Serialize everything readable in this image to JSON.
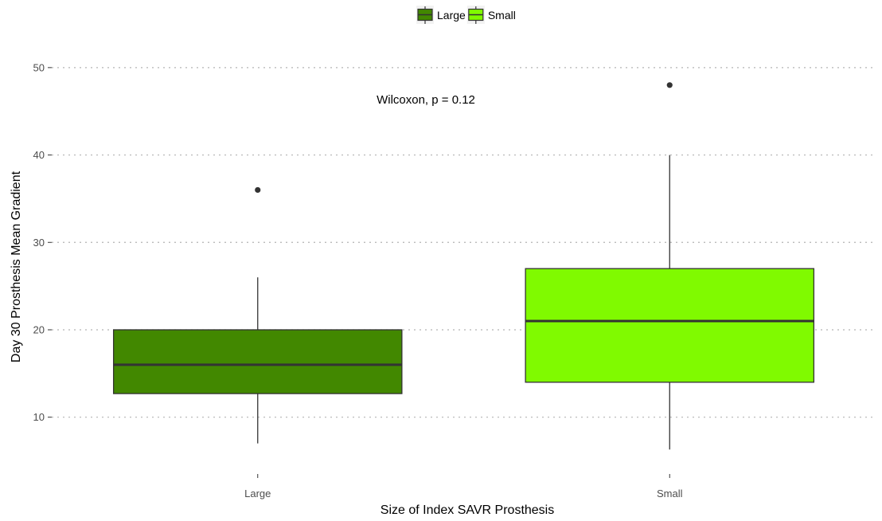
{
  "chart_data": {
    "type": "box",
    "xlabel": "Size of Index SAVR Prosthesis",
    "ylabel": "Day 30 Prosthesis Mean Gradient",
    "ylim": [
      3.5,
      55
    ],
    "yticks": [
      10,
      20,
      30,
      40,
      50
    ],
    "grid": "horizontal dotted",
    "legend_position": "top",
    "annotation": "Wilcoxon, p = 0.12",
    "categories": [
      "Large",
      "Small"
    ],
    "series": [
      {
        "name": "Large",
        "color": "#428800",
        "whisker_low": 7,
        "q1": 12.7,
        "median": 16,
        "q3": 20,
        "whisker_high": 26,
        "outliers": [
          36
        ]
      },
      {
        "name": "Small",
        "color": "#80fa00",
        "whisker_low": 6.3,
        "q1": 14,
        "median": 21,
        "q3": 27,
        "whisker_high": 40,
        "outliers": [
          48
        ]
      }
    ]
  }
}
